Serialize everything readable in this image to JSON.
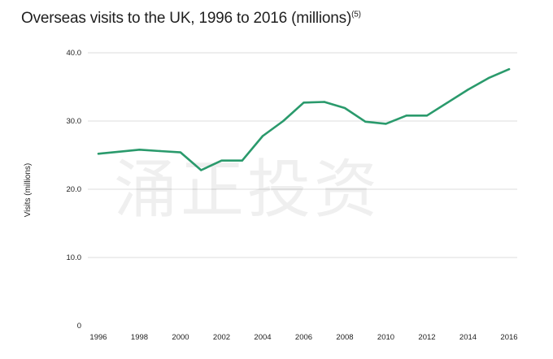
{
  "chart_data": {
    "type": "line",
    "title": "Overseas visits to the UK, 1996 to 2016 (millions)",
    "title_note": "(5)",
    "xlabel": "",
    "ylabel": "Visits (millions)",
    "xlim": [
      1996,
      2016
    ],
    "ylim": [
      0,
      40
    ],
    "x_ticks": [
      1996,
      1998,
      2000,
      2002,
      2004,
      2006,
      2008,
      2010,
      2012,
      2014,
      2016
    ],
    "y_ticks": [
      {
        "value": 0,
        "label": "0"
      },
      {
        "value": 10,
        "label": "10.0"
      },
      {
        "value": 20,
        "label": "20.0"
      },
      {
        "value": 30,
        "label": "30.0"
      },
      {
        "value": 40,
        "label": "40.0"
      }
    ],
    "grid": true,
    "series": [
      {
        "color": "#2a9a6c",
        "x": [
          1996,
          1997,
          1998,
          1999,
          2000,
          2001,
          2002,
          2003,
          2004,
          2005,
          2006,
          2007,
          2008,
          2009,
          2010,
          2011,
          2012,
          2013,
          2014,
          2015,
          2016
        ],
        "values": [
          25.2,
          25.5,
          25.8,
          25.6,
          25.4,
          22.8,
          24.2,
          24.2,
          27.8,
          30.0,
          32.7,
          32.8,
          31.9,
          29.9,
          29.6,
          30.8,
          30.8,
          32.7,
          34.6,
          36.3,
          37.6
        ]
      }
    ]
  },
  "watermark": "涌正投资",
  "colors": {
    "line": "#2a9a6c",
    "grid": "#dcdcdc"
  }
}
